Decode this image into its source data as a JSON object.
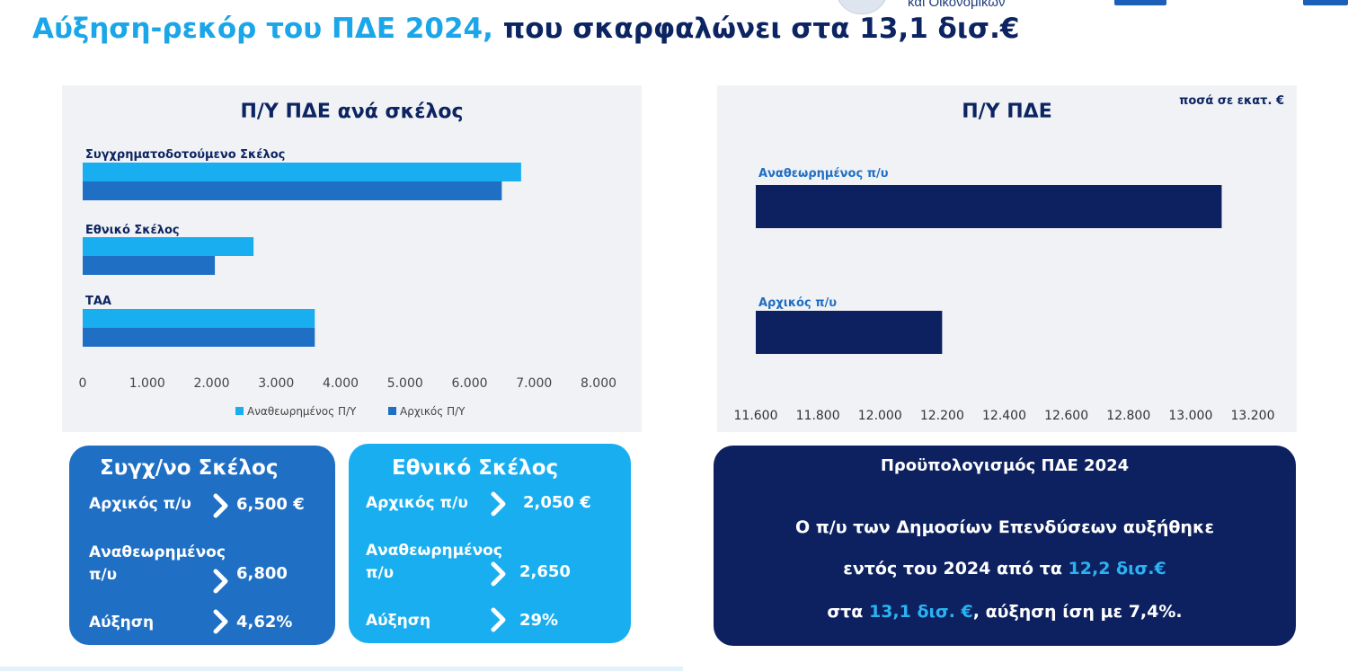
{
  "header": {
    "org_text": "και Οικονομικών",
    "title_highlight": "Αύξηση-ρεκόρ του ΠΔΕ 2024,",
    "title_rest": " που σκαρφαλώνει στα 13,1 δισ.€"
  },
  "colors": {
    "light_blue": "#19aef0",
    "mid_blue": "#1f6fc4",
    "navy": "#0c2461",
    "highlight": "#2ab3f3"
  },
  "chart_data": [
    {
      "type": "bar",
      "orientation": "horizontal",
      "title": "Π/Υ ΠΔΕ ανά σκέλος",
      "categories": [
        "Συγχρηματοδοτούμενο Σκέλος",
        "Εθνικό Σκέλος",
        "ΤΑΑ"
      ],
      "series": [
        {
          "name": "Αναθεωρημένος Π/Υ",
          "color": "#19aef0",
          "values": [
            6800,
            2650,
            3600
          ]
        },
        {
          "name": "Αρχικός Π/Υ",
          "color": "#1f6fc4",
          "values": [
            6500,
            2050,
            3600
          ]
        }
      ],
      "xlim": [
        0,
        8000
      ],
      "ticks": [
        0,
        1000,
        2000,
        3000,
        4000,
        5000,
        6000,
        7000,
        8000
      ],
      "tick_labels": [
        "0",
        "1.000",
        "2.000",
        "3.000",
        "4.000",
        "5.000",
        "6.000",
        "7.000",
        "8.000"
      ],
      "legend_position": "bottom",
      "grid": false
    },
    {
      "type": "bar",
      "orientation": "horizontal",
      "title": "Π/Υ ΠΔΕ",
      "annotation": "ποσά σε εκατ. €",
      "categories": [
        "Αναθεωρημένος π/υ",
        "Αρχικός π/υ"
      ],
      "values": [
        13100,
        12200
      ],
      "color": "#0d2160",
      "xlim": [
        11600,
        13200
      ],
      "ticks": [
        11600,
        11800,
        12000,
        12200,
        12400,
        12600,
        12800,
        13000,
        13200
      ],
      "tick_labels": [
        "11.600",
        "11.800",
        "12.000",
        "12.200",
        "12.400",
        "12.600",
        "12.800",
        "13.000",
        "13.200"
      ],
      "grid": false
    }
  ],
  "cards": {
    "cofin": {
      "title": "Συγχ/νο Σκέλος",
      "initial_label": "Αρχικός π/υ",
      "initial_value": "6,500 €",
      "revised_label_1": "Αναθεωρημένος",
      "revised_label_2": "π/υ",
      "revised_value": "6,800",
      "increase_label": "Αύξηση",
      "increase_value": "4,62%"
    },
    "national": {
      "title": "Εθνικό Σκέλος",
      "initial_label": "Αρχικός π/υ",
      "initial_value": "2,050 €",
      "revised_label_1": "Αναθεωρημένος",
      "revised_label_2": "π/υ",
      "revised_value": "2,650",
      "increase_label": "Αύξηση",
      "increase_value": "29%"
    },
    "budget": {
      "title": "Προϋπολογισμός ΠΔΕ 2024",
      "line1": "Ο π/υ των Δημοσίων Επενδύσεων αυξήθηκε",
      "line2_a": "εντός του 2024 από τα ",
      "line2_b": "12,2 δισ.€",
      "line3_a": "στα ",
      "line3_b": "13,1 δισ. €",
      "line3_c": ", αύξηση ίση με 7,4%."
    }
  }
}
